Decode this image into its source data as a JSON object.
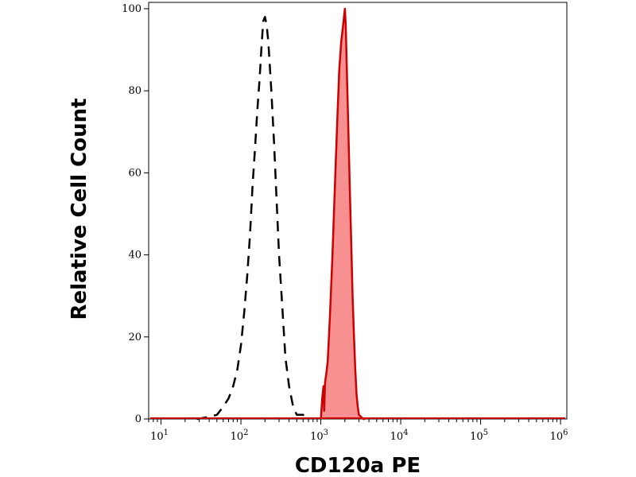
{
  "chart_data": {
    "type": "area",
    "xlabel": "CD120a PE",
    "ylabel": "Relative Cell Count",
    "xscale": "log",
    "xlim": [
      7,
      1200000
    ],
    "ylim": [
      0,
      100
    ],
    "grid": false,
    "legend": "none",
    "x_ticks": [
      {
        "value": 10,
        "base": "10",
        "exp": "1"
      },
      {
        "value": 100,
        "base": "10",
        "exp": "2"
      },
      {
        "value": 1000,
        "base": "10",
        "exp": "3"
      },
      {
        "value": 10000,
        "base": "10",
        "exp": "4"
      },
      {
        "value": 100000,
        "base": "10",
        "exp": "5"
      },
      {
        "value": 1000000,
        "base": "10",
        "exp": "6"
      }
    ],
    "y_ticks": [
      {
        "value": 0,
        "label": "0"
      },
      {
        "value": 20,
        "label": "20"
      },
      {
        "value": 40,
        "label": "40"
      },
      {
        "value": 60,
        "label": "60"
      },
      {
        "value": 80,
        "label": "80"
      },
      {
        "value": 100,
        "label": "100"
      }
    ],
    "series": [
      {
        "style": "dashed",
        "color": "#000000",
        "x": [
          28,
          40,
          50,
          60,
          70,
          80,
          90,
          100,
          110,
          120,
          130,
          140,
          150,
          160,
          170,
          175,
          180,
          190,
          200,
          210,
          220,
          240,
          260,
          280,
          300,
          330,
          360,
          400,
          450,
          500,
          550,
          600,
          660
        ],
        "y": [
          0,
          0.5,
          1,
          3,
          5,
          8,
          12,
          18,
          26,
          35,
          45,
          57,
          66,
          75,
          82,
          86,
          90,
          97,
          98,
          96,
          92,
          80,
          67,
          53,
          40,
          27,
          15,
          8,
          3,
          1,
          1,
          1,
          0
        ]
      },
      {
        "style": "filled",
        "color": "#cc0000",
        "fill": "#f79090",
        "x": [
          1000,
          1040,
          1080,
          1100,
          1130,
          1170,
          1220,
          1300,
          1400,
          1500,
          1600,
          1700,
          1800,
          1900,
          1950,
          2000,
          2050,
          2100,
          2200,
          2300,
          2400,
          2500,
          2600,
          2700,
          2800,
          2900,
          3000,
          3200,
          3400,
          3600
        ],
        "y": [
          0,
          5,
          8,
          2,
          9,
          11,
          14,
          25,
          40,
          57,
          72,
          85,
          92,
          96,
          98,
          100,
          96,
          88,
          72,
          57,
          43,
          30,
          20,
          12,
          6,
          3,
          1,
          0.5,
          0,
          0
        ]
      }
    ]
  }
}
